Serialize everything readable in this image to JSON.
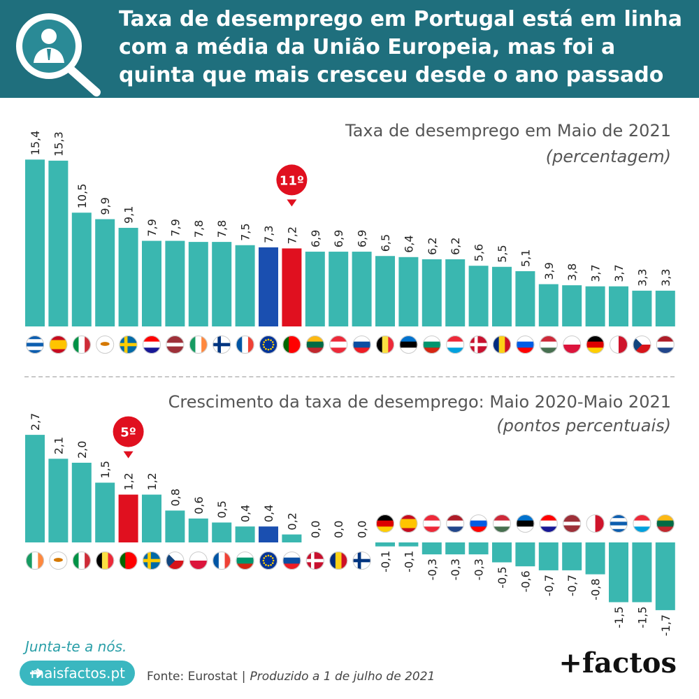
{
  "header": {
    "title_lines": [
      "Taxa de desemprego em Portugal está em linha",
      "com a média da União Europeia, mas foi a",
      "quinta que mais cresceu desde o ano passado"
    ],
    "logo_icon": "magnifier-person-icon"
  },
  "colors": {
    "header_bg": "#1f6f7d",
    "bar": "#3ab7b0",
    "eu_bar": "#1a4fb0",
    "portugal_bar": "#e0101f",
    "rank_badge": "#e0101f"
  },
  "chart_data": [
    {
      "type": "bar",
      "title": "Taxa de desemprego em Maio de 2021",
      "unit": "(percentagem)",
      "rank_badge": "11º",
      "highlight_index": 11,
      "eu_index": 10,
      "categories": [
        "Grécia",
        "Espanha",
        "Itália",
        "Chipre",
        "Suécia",
        "Croácia",
        "Letónia",
        "Irlanda",
        "Finlândia",
        "França",
        "UE",
        "Portugal",
        "Lituânia",
        "Áustria",
        "Eslováquia",
        "Bélgica",
        "Estónia",
        "Bulgária",
        "Luxemburgo",
        "Dinamarca",
        "Roménia",
        "Eslovénia",
        "Hungria",
        "Polónia",
        "Alemanha",
        "Malta",
        "República Checa",
        "Países Baixos"
      ],
      "values": [
        15.4,
        15.3,
        10.5,
        9.9,
        9.1,
        7.9,
        7.9,
        7.8,
        7.8,
        7.5,
        7.3,
        7.2,
        6.9,
        6.9,
        6.9,
        6.5,
        6.4,
        6.2,
        6.2,
        5.6,
        5.5,
        5.1,
        3.9,
        3.8,
        3.7,
        3.7,
        3.3,
        3.3
      ],
      "labels": [
        "15,4",
        "15,3",
        "10,5",
        "9,9",
        "9,1",
        "7,9",
        "7,9",
        "7,8",
        "7,8",
        "7,5",
        "7,3",
        "7,2",
        "6,9",
        "6,9",
        "6,9",
        "6,5",
        "6,4",
        "6,2",
        "6,2",
        "5,6",
        "5,5",
        "5,1",
        "3,9",
        "3,8",
        "3,7",
        "3,7",
        "3,3",
        "3,3"
      ],
      "flags": [
        "GR",
        "ES",
        "IT",
        "CY",
        "SE",
        "HR",
        "LV",
        "IE",
        "FI",
        "FR",
        "EU",
        "PT",
        "LT",
        "AT",
        "SK",
        "BE",
        "EE",
        "BG",
        "LU",
        "DK",
        "RO",
        "SI",
        "HU",
        "PL",
        "DE",
        "MT",
        "CZ",
        "NL"
      ]
    },
    {
      "type": "bar",
      "title": "Crescimento da taxa de desemprego: Maio 2020-Maio 2021",
      "unit": "(pontos percentuais)",
      "rank_badge": "5º",
      "highlight_index": 4,
      "eu_index": 10,
      "categories": [
        "Irlanda",
        "Chipre",
        "Itália",
        "Bélgica",
        "Portugal",
        "Suécia",
        "República Checa",
        "Polónia",
        "França",
        "Bulgária",
        "UE",
        "Eslováquia",
        "Dinamarca",
        "Roménia",
        "Finlândia",
        "Alemanha",
        "Espanha",
        "Áustria",
        "Países Baixos",
        "Eslovénia",
        "Hungria",
        "Estónia",
        "Croácia",
        "Letónia",
        "Malta",
        "Grécia",
        "Luxemburgo",
        "Lituânia"
      ],
      "values": [
        2.7,
        2.1,
        2.0,
        1.5,
        1.2,
        1.2,
        0.8,
        0.6,
        0.5,
        0.4,
        0.4,
        0.2,
        0.0,
        0.0,
        0.0,
        -0.1,
        -0.1,
        -0.3,
        -0.3,
        -0.3,
        -0.5,
        -0.6,
        -0.7,
        -0.7,
        -0.8,
        -1.5,
        -1.5,
        -1.7
      ],
      "labels": [
        "2,7",
        "2,1",
        "2,0",
        "1,5",
        "1,2",
        "1,2",
        "0,8",
        "0,6",
        "0,5",
        "0,4",
        "0,4",
        "0,2",
        "0,0",
        "0,0",
        "0,0",
        "-0,1",
        "-0,1",
        "-0,3",
        "-0,3",
        "-0,3",
        "-0,5",
        "-0,6",
        "-0,7",
        "-0,7",
        "-0,8",
        "-1,5",
        "-1,5",
        "-1,7"
      ],
      "flags": [
        "IE",
        "CY",
        "IT",
        "BE",
        "PT",
        "SE",
        "CZ",
        "PL",
        "FR",
        "BG",
        "EU",
        "SK",
        "DK",
        "RO",
        "FI",
        "DE",
        "ES",
        "AT",
        "NL",
        "SI",
        "HU",
        "EE",
        "HR",
        "LV",
        "MT",
        "GR",
        "LU",
        "LT"
      ]
    }
  ],
  "footer": {
    "join_text": "Junta-te a nós.",
    "site_button": "maisfactos.pt",
    "source": "Fonte: Eurostat",
    "separator": "|",
    "produced": "Produzido a 1 de julho de 2021",
    "brand": "+factos"
  }
}
